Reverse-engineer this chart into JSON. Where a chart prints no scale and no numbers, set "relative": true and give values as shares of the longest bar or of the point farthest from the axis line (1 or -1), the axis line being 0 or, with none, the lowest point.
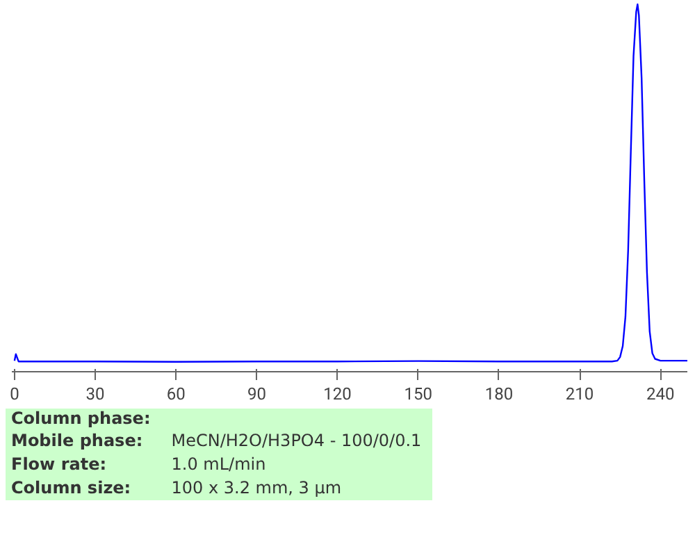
{
  "chart_data": {
    "type": "line",
    "relative": true,
    "x": [
      0,
      0.5,
      1.5,
      10,
      30,
      60,
      90,
      120,
      150,
      180,
      210,
      222,
      224,
      225,
      226,
      227,
      228,
      229,
      230,
      231,
      231.5,
      232,
      233,
      234,
      235,
      236,
      237,
      238,
      240,
      250
    ],
    "series": [
      {
        "color": "#0000ff",
        "values": [
          0.03,
          0.048,
          0.028,
          0.028,
          0.028,
          0.027,
          0.028,
          0.028,
          0.029,
          0.028,
          0.028,
          0.028,
          0.03,
          0.04,
          0.07,
          0.15,
          0.33,
          0.6,
          0.86,
          0.98,
          1.0,
          0.97,
          0.8,
          0.52,
          0.27,
          0.11,
          0.05,
          0.035,
          0.03,
          0.03
        ]
      }
    ],
    "xlim": [
      -1,
      250
    ],
    "xticks": [
      0,
      30,
      60,
      90,
      120,
      150,
      180,
      210,
      240
    ],
    "grid": false,
    "line_style": "solid",
    "annotations": [
      "Column phase:",
      "Mobile phase: MeCN/H2O/H3PO4 - 100/0/0.1",
      "Flow rate: 1.0 mL/min",
      "Column size: 100 x 3.2 mm, 3 µm"
    ]
  }
}
